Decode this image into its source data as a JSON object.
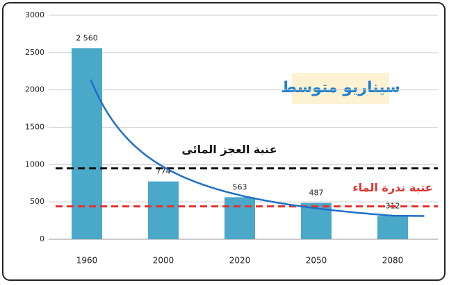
{
  "chart_data": {
    "type": "bar",
    "categories": [
      "1960",
      "2000",
      "2020",
      "2050",
      "2080"
    ],
    "values": [
      2560,
      774,
      563,
      487,
      312
    ],
    "value_labels": [
      "2 560",
      "774",
      "563",
      "487",
      "312"
    ],
    "color": "#4aa8c8",
    "ylim": [
      0,
      3000
    ],
    "yticks": [
      0,
      500,
      1000,
      1500,
      2000,
      2500,
      3000
    ],
    "grid": true,
    "trend_line": {
      "color": "#1f6fc6"
    },
    "thresholds": [
      {
        "label": "عتبة العجز المائى",
        "value": 950,
        "color": "#111111"
      },
      {
        "label": "عتبة ندرة الماء",
        "value": 440,
        "color": "#e8302c"
      }
    ],
    "annotation": "سيناريو متوسط"
  }
}
